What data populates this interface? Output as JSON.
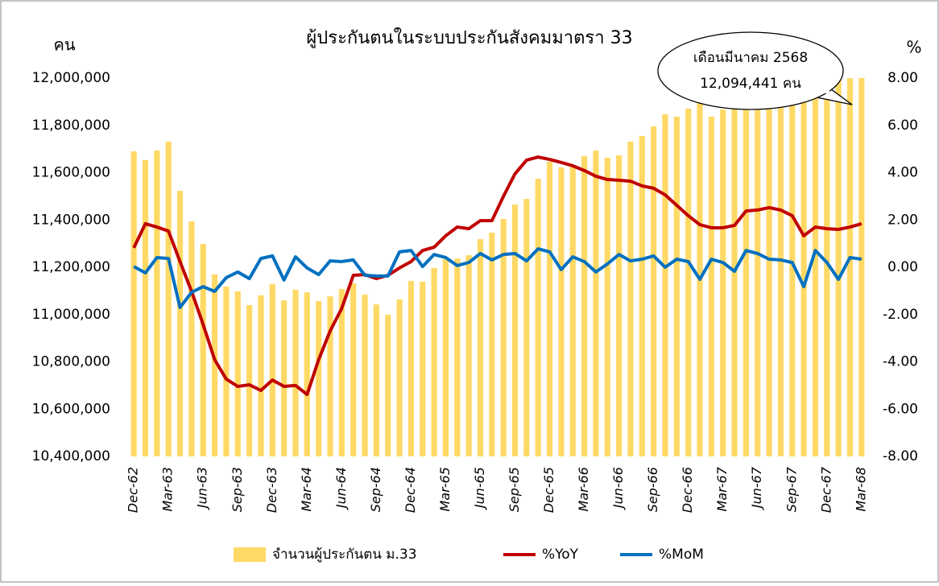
{
  "chart_data": {
    "type": "bar_line",
    "title": "ผู้ประกันตนในระบบประกันสังคมมาตรา 33",
    "ylabel": "คน",
    "y2label": "%",
    "annotation": [
      "เดือนมีนาคม  2568",
      "12,094,441  คน"
    ],
    "categories": [
      "Dec-62",
      null,
      null,
      "Mar-63",
      null,
      null,
      "Jun-63",
      null,
      null,
      "Sep-63",
      null,
      null,
      "Dec-63",
      null,
      null,
      "Mar-64",
      null,
      null,
      "Jun-64",
      null,
      null,
      "Sep-64",
      null,
      null,
      "Dec-64",
      null,
      null,
      "Mar-65",
      null,
      null,
      "Jun-65",
      null,
      null,
      "Sep-65",
      null,
      null,
      "Dec-65",
      null,
      null,
      "Mar-66",
      null,
      null,
      "Jun-66",
      null,
      null,
      "Sep-66",
      null,
      null,
      "Dec-66",
      null,
      null,
      "Mar-67",
      null,
      null,
      "Jun-67",
      null,
      null,
      "Sep-67",
      null,
      null,
      "Dec-67",
      null,
      null,
      "Mar-68"
    ],
    "series": [
      {
        "name": "จำนวนผู้ประกันตน ม.33",
        "color": "#ffd966",
        "kind": "bar",
        "values": [
          11690000,
          11653000,
          11694000,
          11731000,
          11523000,
          11394000,
          11299000,
          11170000,
          11118000,
          11098000,
          11040000,
          11081000,
          11129000,
          11060000,
          11105000,
          11094000,
          11057000,
          11077000,
          11108000,
          11132000,
          11084000,
          11043000,
          10999000,
          11064000,
          11142000,
          11139000,
          11197000,
          11234000,
          11237000,
          11251000,
          11319000,
          11346000,
          11404000,
          11465000,
          11489000,
          11574000,
          11646000,
          11622000,
          11632000,
          11670000,
          11694000,
          11663000,
          11673000,
          11731000,
          11755000,
          11796000,
          11847000,
          11837000,
          11871000,
          11894000,
          11837000,
          11867000,
          11884000,
          11880000,
          11945000,
          11990000,
          12020000,
          12000000,
          12050000,
          12060000,
          12070000,
          12080000,
          12070000,
          12094441
        ]
      },
      {
        "name": "%YoY",
        "color": "#c00000",
        "kind": "line",
        "axis": "y2",
        "values": [
          0.82,
          1.84,
          1.7,
          1.53,
          0.24,
          -1.02,
          -2.42,
          -3.91,
          -4.73,
          -5.04,
          -4.97,
          -5.21,
          -4.77,
          -5.04,
          -5.0,
          -5.38,
          -3.91,
          -2.69,
          -1.74,
          -0.34,
          -0.31,
          -0.48,
          -0.34,
          -0.03,
          0.24,
          0.71,
          0.85,
          1.33,
          1.7,
          1.63,
          1.97,
          1.97,
          3.0,
          3.95,
          4.53,
          4.66,
          4.56,
          4.43,
          4.29,
          4.09,
          3.85,
          3.71,
          3.68,
          3.64,
          3.44,
          3.34,
          3.06,
          2.62,
          2.18,
          1.8,
          1.67,
          1.67,
          1.77,
          2.38,
          2.42,
          2.52,
          2.42,
          2.18,
          1.33,
          1.7,
          1.63,
          1.6,
          1.7,
          1.84
        ]
      },
      {
        "name": "%MoM",
        "color": "#0070c0",
        "kind": "line",
        "axis": "y2",
        "values": [
          0.03,
          -0.24,
          0.41,
          0.37,
          -1.7,
          -1.06,
          -0.82,
          -1.02,
          -0.44,
          -0.2,
          -0.48,
          0.37,
          0.48,
          -0.54,
          0.44,
          -0.03,
          -0.31,
          0.27,
          0.24,
          0.31,
          -0.34,
          -0.37,
          -0.37,
          0.65,
          0.71,
          0.03,
          0.54,
          0.41,
          0.07,
          0.2,
          0.58,
          0.31,
          0.54,
          0.58,
          0.27,
          0.78,
          0.65,
          -0.1,
          0.44,
          0.24,
          -0.2,
          0.14,
          0.54,
          0.27,
          0.34,
          0.48,
          0,
          0.34,
          0.24,
          -0.51,
          0.34,
          0.2,
          -0.17,
          0.71,
          0.58,
          0.34,
          0.31,
          0.2,
          -0.82,
          0.71,
          0.2,
          -0.51,
          0.41,
          0.34
        ]
      }
    ],
    "ylim": [
      10400000,
      12000000
    ],
    "yticks": [
      {
        "value": 10400000,
        "label": "10,400,000"
      },
      {
        "value": 10600000,
        "label": "10,600,000"
      },
      {
        "value": 10800000,
        "label": "10,800,000"
      },
      {
        "value": 11000000,
        "label": "11,000,000"
      },
      {
        "value": 11200000,
        "label": "11,200,000"
      },
      {
        "value": 11400000,
        "label": "11,400,000"
      },
      {
        "value": 11600000,
        "label": "11,600,000"
      },
      {
        "value": 11800000,
        "label": "11,800,000"
      },
      {
        "value": 12000000,
        "label": "12,000,000"
      }
    ],
    "y2lim": [
      -8,
      8
    ],
    "y2ticks": [
      {
        "value": -8,
        "label": "-8.00"
      },
      {
        "value": -6,
        "label": "-6.00"
      },
      {
        "value": -4,
        "label": "-4.00"
      },
      {
        "value": -2,
        "label": "-2.00"
      },
      {
        "value": 0,
        "label": "0.00"
      },
      {
        "value": 2,
        "label": "2.00"
      },
      {
        "value": 4,
        "label": "4.00"
      },
      {
        "value": 6,
        "label": "6.00"
      },
      {
        "value": 8,
        "label": "8.00"
      }
    ]
  }
}
